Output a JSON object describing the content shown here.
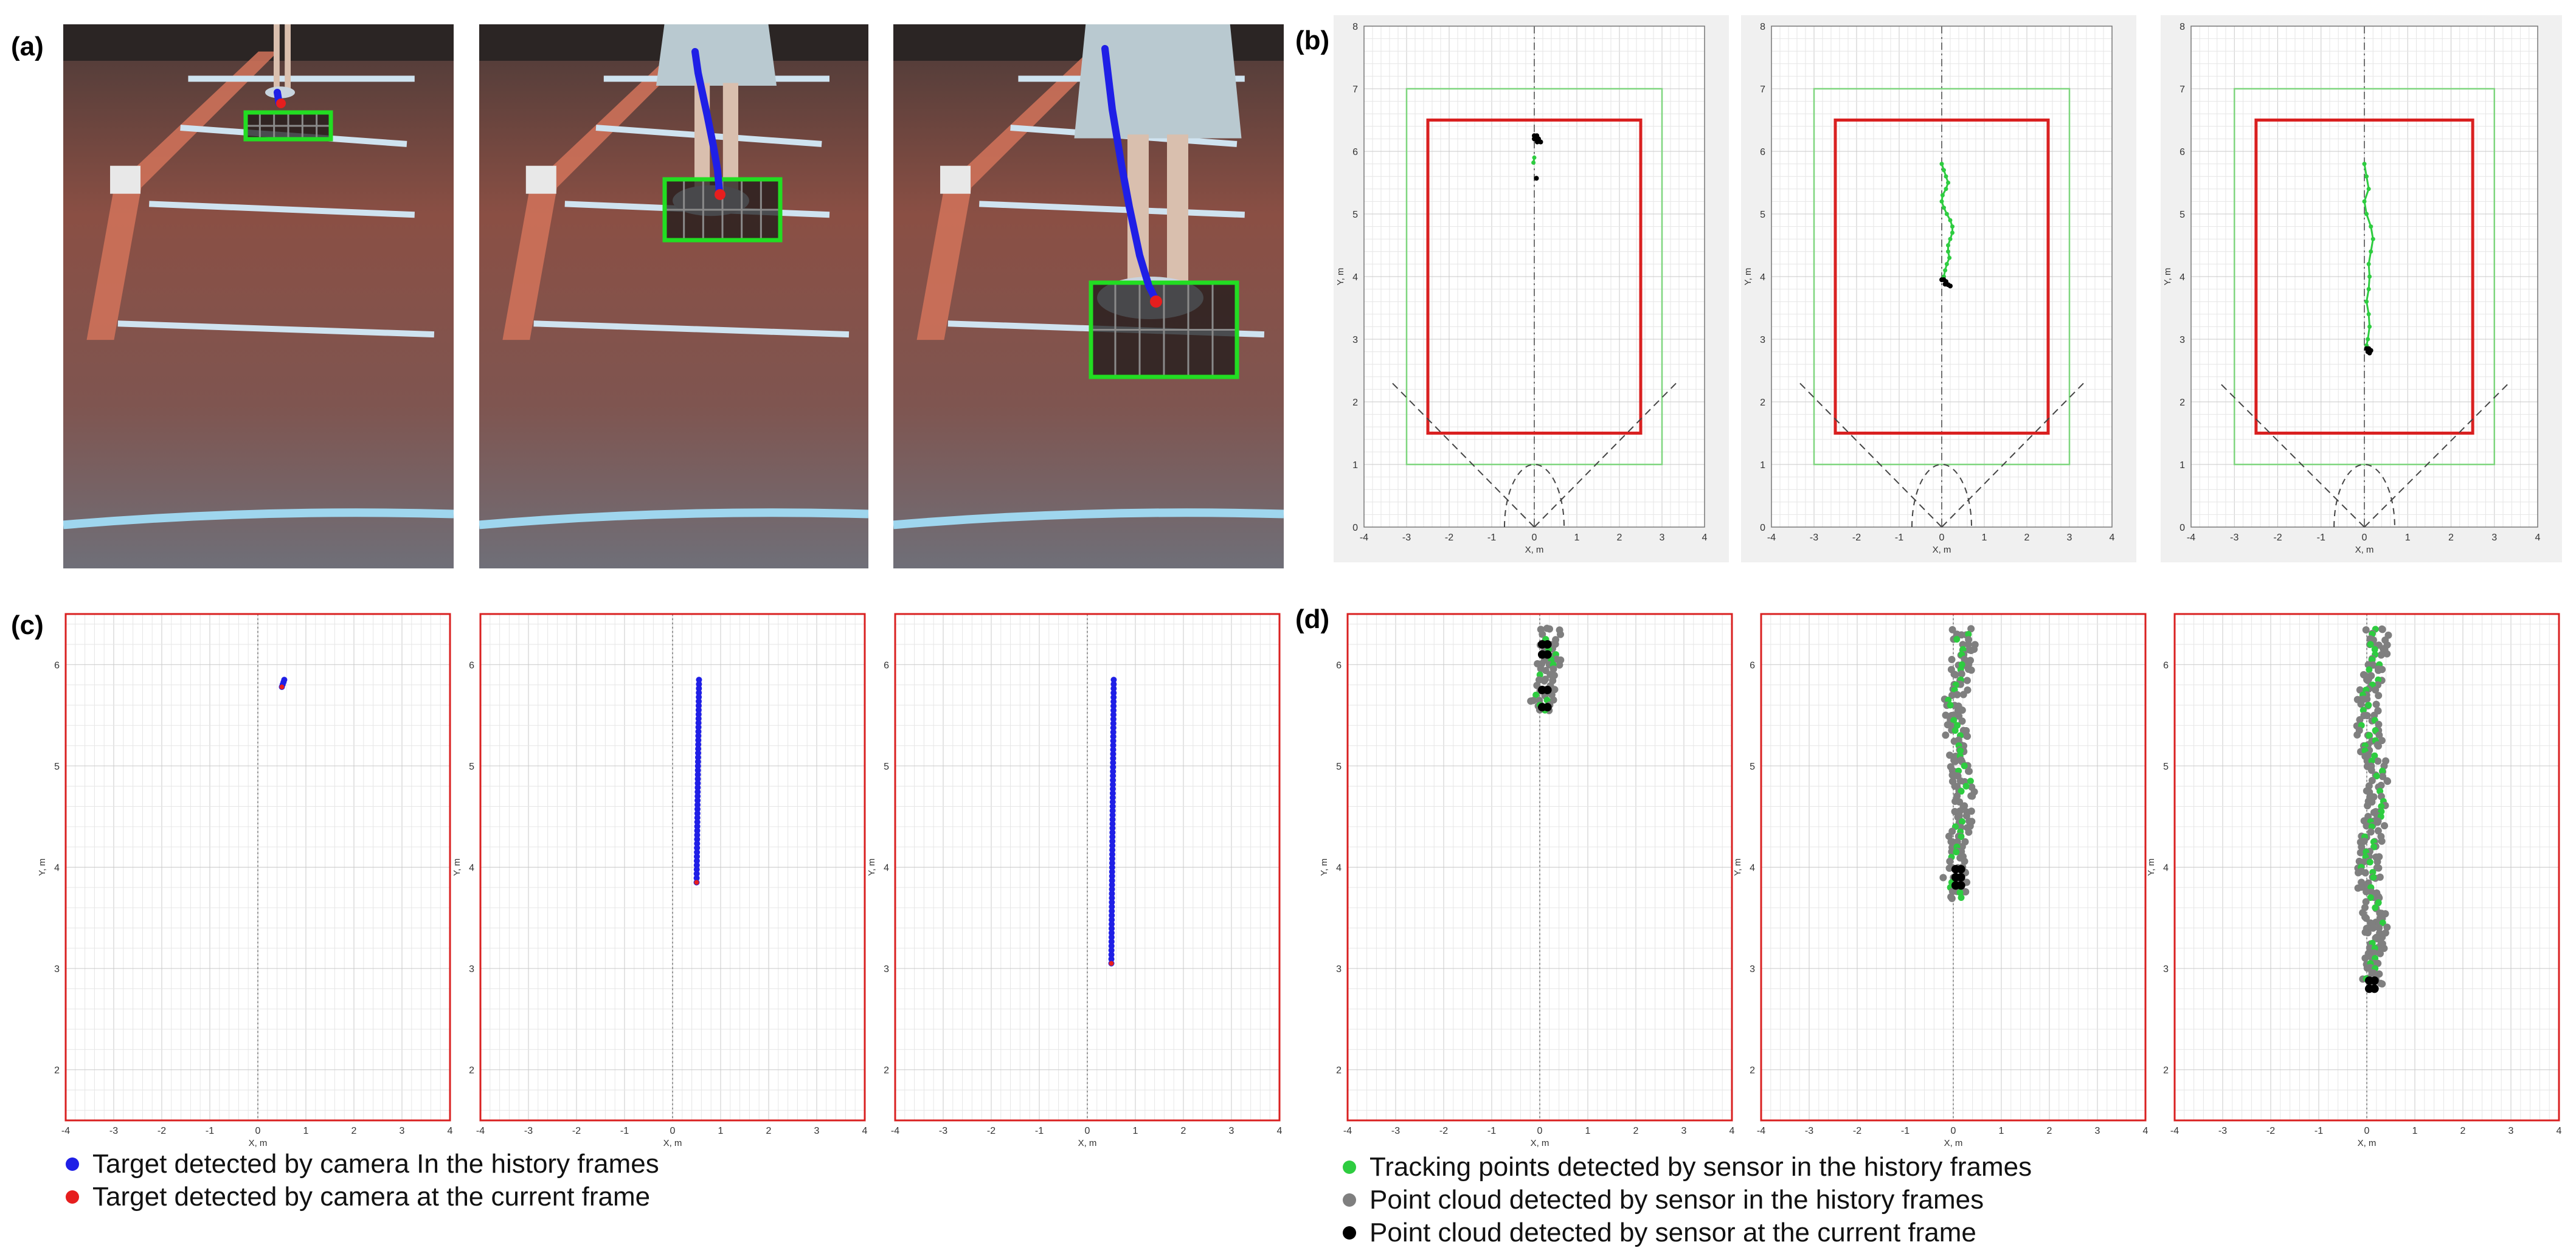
{
  "panel_labels": {
    "a": "(a)",
    "b": "(b)",
    "c": "(c)",
    "d": "(d)"
  },
  "colors": {
    "camera_history": "#1f1fe6",
    "camera_current": "#e61e1e",
    "sensor_tracking": "#2ecc40",
    "sensor_history_cloud": "#7f7f7f",
    "sensor_current_cloud": "#000000",
    "boundary_box": "#d92020",
    "outer_box": "#7fd67f",
    "detection_box": "#22dd22"
  },
  "legend_c": [
    {
      "label": "Target detected by camera In the history frames",
      "color": "#1f1fe6"
    },
    {
      "label": "Target detected by camera at the current frame",
      "color": "#e61e1e"
    }
  ],
  "legend_d": [
    {
      "label": "Tracking points detected by sensor in the history frames",
      "color": "#2ecc40"
    },
    {
      "label": "Point cloud detected by sensor in the history frames",
      "color": "#7f7f7f"
    },
    {
      "label": "Point cloud detected by sensor at the current frame",
      "color": "#000000"
    }
  ],
  "chart_data": [
    {
      "id": "b",
      "type": "scatter",
      "xlabel": "X, m",
      "ylabel": "Y, m",
      "xlim": [
        -4,
        4
      ],
      "ylim": [
        0,
        8
      ],
      "xticks": [
        -4,
        -3,
        -2,
        -1,
        0,
        1,
        2,
        3,
        4
      ],
      "yticks": [
        0,
        1,
        2,
        3,
        4,
        5,
        6,
        7,
        8
      ],
      "grid": true,
      "annotations": {
        "outer_box": {
          "x": [
            -3,
            3
          ],
          "y": [
            1,
            7
          ]
        },
        "boundary_box": {
          "x": [
            -2.5,
            2.5
          ],
          "y": [
            1.5,
            6.5
          ]
        },
        "fov_angle_deg": 45
      },
      "frames": [
        {
          "tracking": [
            [
              0.0,
              5.9
            ],
            [
              -0.02,
              5.82
            ]
          ],
          "current_cloud": [
            [
              0.0,
              6.25
            ],
            [
              0.06,
              6.25
            ],
            [
              0.1,
              6.2
            ],
            [
              0.0,
              6.2
            ],
            [
              0.07,
              6.15
            ],
            [
              0.15,
              6.15
            ],
            [
              0.05,
              5.57
            ]
          ]
        },
        {
          "tracking": [
            [
              0.0,
              5.8
            ],
            [
              0.05,
              5.7
            ],
            [
              0.1,
              5.6
            ],
            [
              0.15,
              5.5
            ],
            [
              0.1,
              5.4
            ],
            [
              0.02,
              5.3
            ],
            [
              0.0,
              5.2
            ],
            [
              0.05,
              5.1
            ],
            [
              0.12,
              5.0
            ],
            [
              0.2,
              4.9
            ],
            [
              0.25,
              4.8
            ],
            [
              0.25,
              4.7
            ],
            [
              0.2,
              4.6
            ],
            [
              0.15,
              4.5
            ],
            [
              0.15,
              4.4
            ],
            [
              0.18,
              4.3
            ],
            [
              0.12,
              4.2
            ],
            [
              0.08,
              4.1
            ],
            [
              0.05,
              4.0
            ]
          ],
          "current_cloud": [
            [
              0.0,
              3.95
            ],
            [
              0.05,
              3.95
            ],
            [
              0.1,
              3.92
            ],
            [
              0.08,
              3.88
            ],
            [
              0.15,
              3.87
            ],
            [
              0.2,
              3.85
            ]
          ]
        },
        {
          "tracking": [
            [
              0.0,
              5.8
            ],
            [
              0.05,
              5.6
            ],
            [
              0.1,
              5.4
            ],
            [
              0.0,
              5.2
            ],
            [
              0.05,
              5.0
            ],
            [
              0.15,
              4.8
            ],
            [
              0.2,
              4.6
            ],
            [
              0.15,
              4.4
            ],
            [
              0.1,
              4.2
            ],
            [
              0.12,
              4.0
            ],
            [
              0.1,
              3.8
            ],
            [
              0.05,
              3.6
            ],
            [
              0.1,
              3.4
            ],
            [
              0.12,
              3.2
            ],
            [
              0.08,
              3.0
            ],
            [
              0.05,
              2.9
            ]
          ],
          "current_cloud": [
            [
              0.05,
              2.85
            ],
            [
              0.1,
              2.85
            ],
            [
              0.15,
              2.82
            ],
            [
              0.08,
              2.8
            ],
            [
              0.12,
              2.78
            ]
          ]
        }
      ]
    },
    {
      "id": "c",
      "type": "scatter",
      "xlabel": "X, m",
      "ylabel": "Y, m",
      "xlim": [
        -4,
        4
      ],
      "ylim": [
        1.5,
        6.5
      ],
      "xticks": [
        -4,
        -3,
        -2,
        -1,
        0,
        1,
        2,
        3,
        4
      ],
      "yticks": [
        2,
        3,
        4,
        5,
        6
      ],
      "grid": true,
      "frames": [
        {
          "history_start": [
            0.55,
            5.85
          ],
          "history_end": [
            0.5,
            5.78
          ],
          "history_count": 4,
          "current": [
            0.5,
            5.78
          ]
        },
        {
          "history_start": [
            0.55,
            5.85
          ],
          "history_end": [
            0.5,
            3.85
          ],
          "history_count": 48,
          "current": [
            0.5,
            3.85
          ]
        },
        {
          "history_start": [
            0.55,
            5.85
          ],
          "history_end": [
            0.5,
            3.05
          ],
          "history_count": 66,
          "current": [
            0.5,
            3.05
          ]
        }
      ]
    },
    {
      "id": "d",
      "type": "scatter",
      "xlabel": "X, m",
      "ylabel": "Y, m",
      "xlim": [
        -4,
        4
      ],
      "ylim": [
        1.5,
        6.5
      ],
      "xticks": [
        -4,
        -3,
        -2,
        -1,
        0,
        1,
        2,
        3,
        4
      ],
      "yticks": [
        2,
        3,
        4,
        5,
        6
      ],
      "grid": true,
      "frames": [
        {
          "y_top": 6.35,
          "y_bottom": 5.55,
          "current_y": [
            6.2,
            6.1,
            5.75,
            5.58
          ]
        },
        {
          "y_top": 6.35,
          "y_bottom": 3.7,
          "current_y": [
            3.98,
            3.9,
            3.82
          ]
        },
        {
          "y_top": 6.35,
          "y_bottom": 2.85,
          "current_y": [
            2.88,
            2.8
          ]
        }
      ]
    }
  ]
}
